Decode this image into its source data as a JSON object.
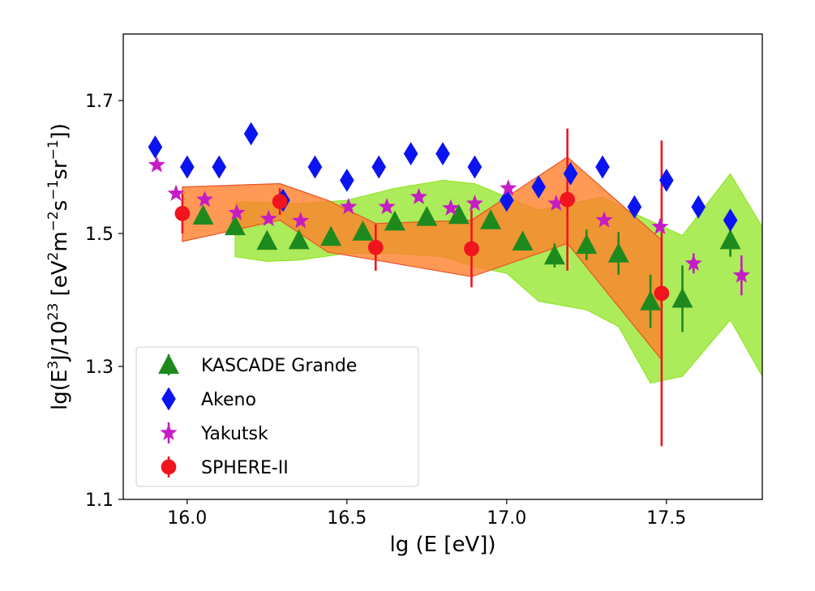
{
  "chart_data": {
    "type": "scatter",
    "xlabel": "lg (E [eV])",
    "ylabel": {
      "prefix": "lg(E",
      "p3": "3",
      "mid": "J/10",
      "p23": "23",
      "units1": " [eV",
      "p2": "2",
      "m": "m",
      "pm2": "−2",
      "s": "s",
      "pm1a": "−1",
      "sr": "sr",
      "pm1b": "−1",
      "close": "])"
    },
    "xlim": [
      15.8,
      17.8
    ],
    "ylim": [
      1.1,
      1.8
    ],
    "x_ticks": [
      16.0,
      16.5,
      17.0,
      17.5
    ],
    "x_tick_labels": [
      "16.0",
      "16.5",
      "17.0",
      "17.5"
    ],
    "y_ticks": [
      1.1,
      1.3,
      1.5,
      1.7
    ],
    "y_tick_labels": [
      "1.1",
      "1.3",
      "1.5",
      "1.7"
    ],
    "grid": false,
    "legend_position": "lower-left",
    "bands": [
      {
        "color": "#7FE000",
        "upper": [
          [
            16.15,
            1.548
          ],
          [
            16.35,
            1.545
          ],
          [
            16.5,
            1.55
          ],
          [
            16.65,
            1.568
          ],
          [
            16.8,
            1.58
          ],
          [
            16.9,
            1.575
          ],
          [
            17.0,
            1.555
          ],
          [
            17.1,
            1.535
          ],
          [
            17.2,
            1.545
          ],
          [
            17.3,
            1.555
          ],
          [
            17.4,
            1.53
          ],
          [
            17.55,
            1.497
          ],
          [
            17.7,
            1.59
          ],
          [
            17.8,
            1.51
          ]
        ],
        "lower": [
          [
            16.15,
            1.465
          ],
          [
            16.25,
            1.458
          ],
          [
            16.35,
            1.46
          ],
          [
            16.5,
            1.47
          ],
          [
            16.65,
            1.47
          ],
          [
            16.8,
            1.465
          ],
          [
            16.9,
            1.45
          ],
          [
            17.0,
            1.44
          ],
          [
            17.1,
            1.398
          ],
          [
            17.25,
            1.385
          ],
          [
            17.35,
            1.36
          ],
          [
            17.45,
            1.275
          ],
          [
            17.55,
            1.285
          ],
          [
            17.7,
            1.37
          ],
          [
            17.8,
            1.285
          ]
        ]
      },
      {
        "color": "#FF7F2A",
        "upper": [
          [
            15.985,
            1.57
          ],
          [
            16.29,
            1.575
          ],
          [
            16.44,
            1.55
          ],
          [
            16.59,
            1.515
          ],
          [
            16.89,
            1.52
          ],
          [
            17.19,
            1.615
          ],
          [
            17.485,
            1.49
          ]
        ],
        "lower": [
          [
            15.985,
            1.488
          ],
          [
            16.29,
            1.52
          ],
          [
            16.44,
            1.472
          ],
          [
            16.59,
            1.46
          ],
          [
            16.89,
            1.435
          ],
          [
            17.19,
            1.485
          ],
          [
            17.485,
            1.31
          ]
        ]
      }
    ],
    "series": [
      {
        "name": "KASCADE Grande",
        "marker": "triangle",
        "color": "#1E8A1E",
        "points": [
          {
            "x": 16.05,
            "y": 1.527
          },
          {
            "x": 16.15,
            "y": 1.511
          },
          {
            "x": 16.25,
            "y": 1.489
          },
          {
            "x": 16.35,
            "y": 1.49
          },
          {
            "x": 16.45,
            "y": 1.495
          },
          {
            "x": 16.55,
            "y": 1.503
          },
          {
            "x": 16.65,
            "y": 1.518
          },
          {
            "x": 16.75,
            "y": 1.525
          },
          {
            "x": 16.85,
            "y": 1.528
          },
          {
            "x": 16.95,
            "y": 1.52
          },
          {
            "x": 17.05,
            "y": 1.488
          },
          {
            "x": 17.15,
            "y": 1.467,
            "err": 0.018
          },
          {
            "x": 17.25,
            "y": 1.483,
            "err": 0.023
          },
          {
            "x": 17.35,
            "y": 1.47,
            "err": 0.032
          },
          {
            "x": 17.45,
            "y": 1.398,
            "err": 0.04
          },
          {
            "x": 17.55,
            "y": 1.402,
            "err": 0.05
          },
          {
            "x": 17.7,
            "y": 1.49,
            "err": 0.025
          }
        ]
      },
      {
        "name": "Akeno",
        "marker": "diamond",
        "color": "#0A14F0",
        "points": [
          {
            "x": 15.9,
            "y": 1.63
          },
          {
            "x": 16.0,
            "y": 1.6
          },
          {
            "x": 16.1,
            "y": 1.6
          },
          {
            "x": 16.2,
            "y": 1.65
          },
          {
            "x": 16.3,
            "y": 1.55
          },
          {
            "x": 16.4,
            "y": 1.6
          },
          {
            "x": 16.5,
            "y": 1.58
          },
          {
            "x": 16.6,
            "y": 1.6
          },
          {
            "x": 16.7,
            "y": 1.62
          },
          {
            "x": 16.8,
            "y": 1.62
          },
          {
            "x": 16.9,
            "y": 1.6
          },
          {
            "x": 17.0,
            "y": 1.55
          },
          {
            "x": 17.1,
            "y": 1.57
          },
          {
            "x": 17.2,
            "y": 1.59
          },
          {
            "x": 17.3,
            "y": 1.6
          },
          {
            "x": 17.4,
            "y": 1.54
          },
          {
            "x": 17.5,
            "y": 1.58
          },
          {
            "x": 17.6,
            "y": 1.54
          },
          {
            "x": 17.7,
            "y": 1.52
          }
        ]
      },
      {
        "name": "Yakutsk",
        "marker": "star",
        "color": "#C61CC6",
        "points": [
          {
            "x": 15.905,
            "y": 1.603
          },
          {
            "x": 15.965,
            "y": 1.56
          },
          {
            "x": 16.055,
            "y": 1.551
          },
          {
            "x": 16.155,
            "y": 1.531
          },
          {
            "x": 16.255,
            "y": 1.522
          },
          {
            "x": 16.355,
            "y": 1.519
          },
          {
            "x": 16.505,
            "y": 1.54
          },
          {
            "x": 16.625,
            "y": 1.54
          },
          {
            "x": 16.725,
            "y": 1.555
          },
          {
            "x": 16.825,
            "y": 1.538
          },
          {
            "x": 16.9,
            "y": 1.545
          },
          {
            "x": 17.005,
            "y": 1.568
          },
          {
            "x": 17.155,
            "y": 1.545
          },
          {
            "x": 17.305,
            "y": 1.52
          },
          {
            "x": 17.48,
            "y": 1.51
          },
          {
            "x": 17.585,
            "y": 1.455,
            "err": 0.015
          },
          {
            "x": 17.735,
            "y": 1.437,
            "err": 0.03
          }
        ]
      },
      {
        "name": "SPHERE-II",
        "marker": "circle",
        "color": "#F0141E",
        "points": [
          {
            "x": 15.985,
            "y": 1.53,
            "err": 0.03
          },
          {
            "x": 16.29,
            "y": 1.548,
            "err": 0.02
          },
          {
            "x": 16.59,
            "y": 1.479,
            "err": 0.035
          },
          {
            "x": 16.89,
            "y": 1.477,
            "err": 0.058
          },
          {
            "x": 17.19,
            "y": 1.551,
            "err": 0.107
          },
          {
            "x": 17.485,
            "y": 1.41,
            "err": 0.23
          }
        ]
      }
    ]
  }
}
